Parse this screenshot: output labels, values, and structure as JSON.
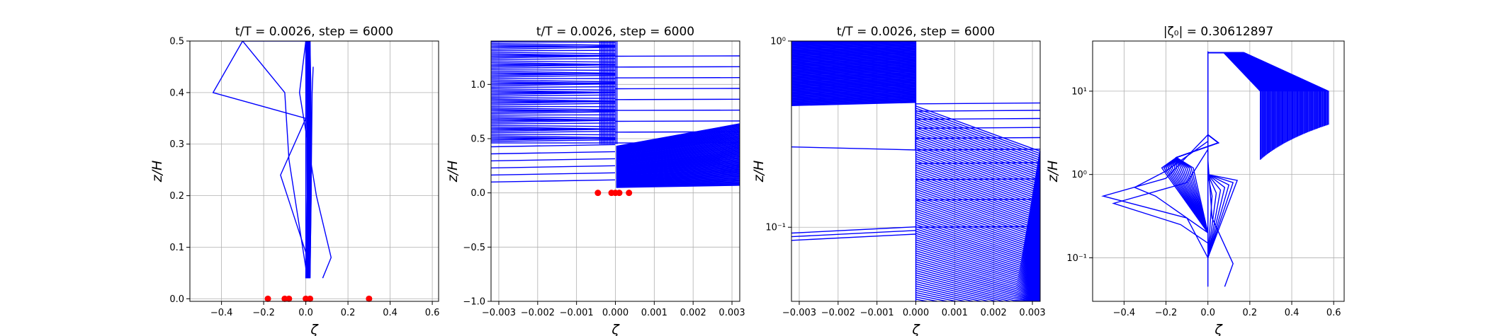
{
  "chart_data": [
    {
      "type": "line",
      "title": "t/T = 0.0026, step = 6000",
      "xlabel": "ζ",
      "ylabel": "z/H",
      "xlim": [
        -0.55,
        0.63
      ],
      "ylim": [
        -0.005,
        0.5
      ],
      "yscale": "linear",
      "grid": true,
      "xticks": [
        "−0.4",
        "−0.2",
        "0.0",
        "0.2",
        "0.4",
        "0.6"
      ],
      "yticks": [
        "0.0",
        "0.1",
        "0.2",
        "0.3",
        "0.4",
        "0.5"
      ],
      "series_color": "#0000ff",
      "marker_color": "#ff0000",
      "line_series": [
        {
          "x": [
            0.08,
            0.12,
            0.05,
            -0.03,
            0.0
          ],
          "y": [
            0.04,
            0.08,
            0.2,
            0.4,
            0.5
          ]
        },
        {
          "x": [
            0.0,
            -0.12,
            0.0,
            -0.44,
            -0.3
          ],
          "y": [
            0.09,
            0.24,
            0.35,
            0.4,
            0.5
          ]
        },
        {
          "x": [
            0.0,
            -0.08,
            -0.1,
            -0.3,
            0.0
          ],
          "y": [
            0.06,
            0.27,
            0.4,
            0.5,
            0.5
          ]
        },
        {
          "x": [
            0.0,
            0.0,
            0.0,
            0.0
          ],
          "y": [
            0.04,
            0.2,
            0.4,
            0.5
          ]
        },
        {
          "x": [
            0.01,
            0.015,
            0.02,
            0.02
          ],
          "y": [
            0.04,
            0.2,
            0.4,
            0.5
          ]
        },
        {
          "x": [
            0.02,
            0.025,
            0.03,
            0.035
          ],
          "y": [
            0.04,
            0.2,
            0.4,
            0.45
          ]
        }
      ],
      "markers": {
        "x": [
          -0.18,
          -0.1,
          -0.08,
          0.0,
          0.02,
          0.3
        ],
        "y": [
          0.0,
          0.0,
          0.0,
          0.0,
          0.0,
          0.0
        ]
      }
    },
    {
      "type": "line",
      "title": "t/T = 0.0026, step = 6000",
      "xlabel": "ζ",
      "ylabel": "z/H",
      "xlim": [
        -0.0032,
        0.0032
      ],
      "ylim": [
        -1.0,
        1.4
      ],
      "yscale": "linear",
      "grid": true,
      "xticks": [
        "−0.003",
        "−0.002",
        "−0.001",
        "0.000",
        "0.001",
        "0.002",
        "0.003"
      ],
      "yticks": [
        "−1.0",
        "−0.5",
        "0.0",
        "0.5",
        "1.0"
      ],
      "series_color": "#0000ff",
      "marker_color": "#ff0000",
      "markers": {
        "x": [
          -0.00045,
          -0.0001,
          0.0,
          0.0001,
          0.00035
        ],
        "y": [
          0.0,
          0.0,
          0.0,
          0.0,
          0.0
        ]
      }
    },
    {
      "type": "line",
      "title": "t/T = 0.0026, step = 6000",
      "xlabel": "ζ",
      "ylabel": "z/H",
      "xlim": [
        -0.0032,
        0.0032
      ],
      "ylim": [
        0.04,
        1.0
      ],
      "yscale": "log",
      "grid": true,
      "xticks": [
        "−0.003",
        "−0.002",
        "−0.001",
        "0.000",
        "0.001",
        "0.002",
        "0.003"
      ],
      "yticks": [
        "10⁻¹",
        "10⁰"
      ],
      "series_color": "#0000ff"
    },
    {
      "type": "line",
      "title": "|ζ₀| = 0.30612897",
      "xlabel": "ζ",
      "ylabel": "z/H",
      "xlim": [
        -0.55,
        0.65
      ],
      "ylim": [
        0.03,
        40
      ],
      "yscale": "log",
      "grid": true,
      "xticks": [
        "−0.4",
        "−0.2",
        "0.0",
        "0.2",
        "0.4",
        "0.6"
      ],
      "yticks": [
        "10⁻¹",
        "10⁰",
        "10¹"
      ],
      "series_color": "#0000ff",
      "line_series": [
        {
          "x": [
            0.08,
            0.12,
            0.02,
            0.0,
            0.0
          ],
          "y": [
            0.045,
            0.085,
            0.3,
            1.5,
            30
          ]
        },
        {
          "x": [
            0.0,
            -0.1,
            -0.5,
            -0.2,
            0.0
          ],
          "y": [
            0.1,
            0.3,
            0.55,
            0.9,
            3
          ]
        },
        {
          "x": [
            0.0,
            -0.13,
            -0.45,
            -0.1,
            0.0
          ],
          "y": [
            0.15,
            0.25,
            0.45,
            0.8,
            2
          ]
        },
        {
          "x": [
            0.0,
            -0.25,
            -0.35,
            -0.2,
            0.0
          ],
          "y": [
            0.2,
            0.55,
            0.7,
            1.1,
            2.5
          ]
        },
        {
          "x": [
            0.0,
            0.0,
            0.0
          ],
          "y": [
            0.045,
            1.0,
            30
          ]
        }
      ]
    }
  ]
}
